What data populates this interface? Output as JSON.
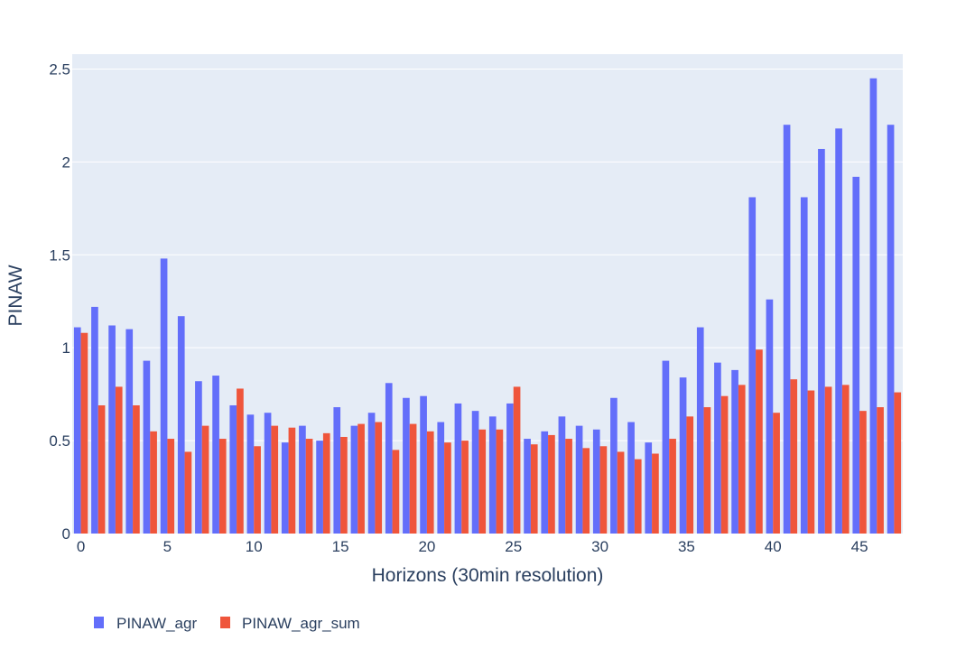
{
  "chart_data": {
    "type": "bar",
    "xlabel": "Horizons (30min resolution)",
    "ylabel": "PINAW",
    "xlim": [
      -0.5,
      47.5
    ],
    "ylim": [
      0,
      2.58
    ],
    "xticks": [
      0,
      5,
      10,
      15,
      20,
      25,
      30,
      35,
      40,
      45
    ],
    "yticks": [
      0,
      0.5,
      1,
      1.5,
      2,
      2.5
    ],
    "ytick_labels": [
      "0",
      "0.5",
      "1",
      "1.5",
      "2",
      "2.5"
    ],
    "grid": true,
    "legend_position": "bottom-left",
    "x": [
      0,
      1,
      2,
      3,
      4,
      5,
      6,
      7,
      8,
      9,
      10,
      11,
      12,
      13,
      14,
      15,
      16,
      17,
      18,
      19,
      20,
      21,
      22,
      23,
      24,
      25,
      26,
      27,
      28,
      29,
      30,
      31,
      32,
      33,
      34,
      35,
      36,
      37,
      38,
      39,
      40,
      41,
      42,
      43,
      44,
      45,
      46,
      47
    ],
    "series": [
      {
        "name": "PINAW_agr",
        "color": "#636efa",
        "values": [
          1.11,
          1.22,
          1.12,
          1.1,
          0.93,
          1.48,
          1.17,
          0.82,
          0.85,
          0.69,
          0.64,
          0.65,
          0.49,
          0.58,
          0.5,
          0.68,
          0.58,
          0.65,
          0.81,
          0.73,
          0.74,
          0.6,
          0.7,
          0.66,
          0.63,
          0.7,
          0.51,
          0.55,
          0.63,
          0.58,
          0.56,
          0.73,
          0.6,
          0.49,
          0.93,
          0.84,
          1.11,
          0.92,
          0.88,
          1.81,
          1.26,
          2.2,
          1.81,
          2.07,
          2.18,
          1.92,
          2.45,
          2.2
        ]
      },
      {
        "name": "PINAW_agr_sum",
        "color": "#ef553b",
        "values": [
          1.08,
          0.69,
          0.79,
          0.69,
          0.55,
          0.51,
          0.44,
          0.58,
          0.51,
          0.78,
          0.47,
          0.58,
          0.57,
          0.51,
          0.54,
          0.52,
          0.59,
          0.6,
          0.45,
          0.59,
          0.55,
          0.49,
          0.5,
          0.56,
          0.56,
          0.79,
          0.48,
          0.53,
          0.51,
          0.46,
          0.47,
          0.44,
          0.4,
          0.43,
          0.51,
          0.63,
          0.68,
          0.74,
          0.8,
          0.99,
          0.65,
          0.83,
          0.77,
          0.79,
          0.8,
          0.66,
          0.68,
          0.76
        ]
      }
    ]
  }
}
